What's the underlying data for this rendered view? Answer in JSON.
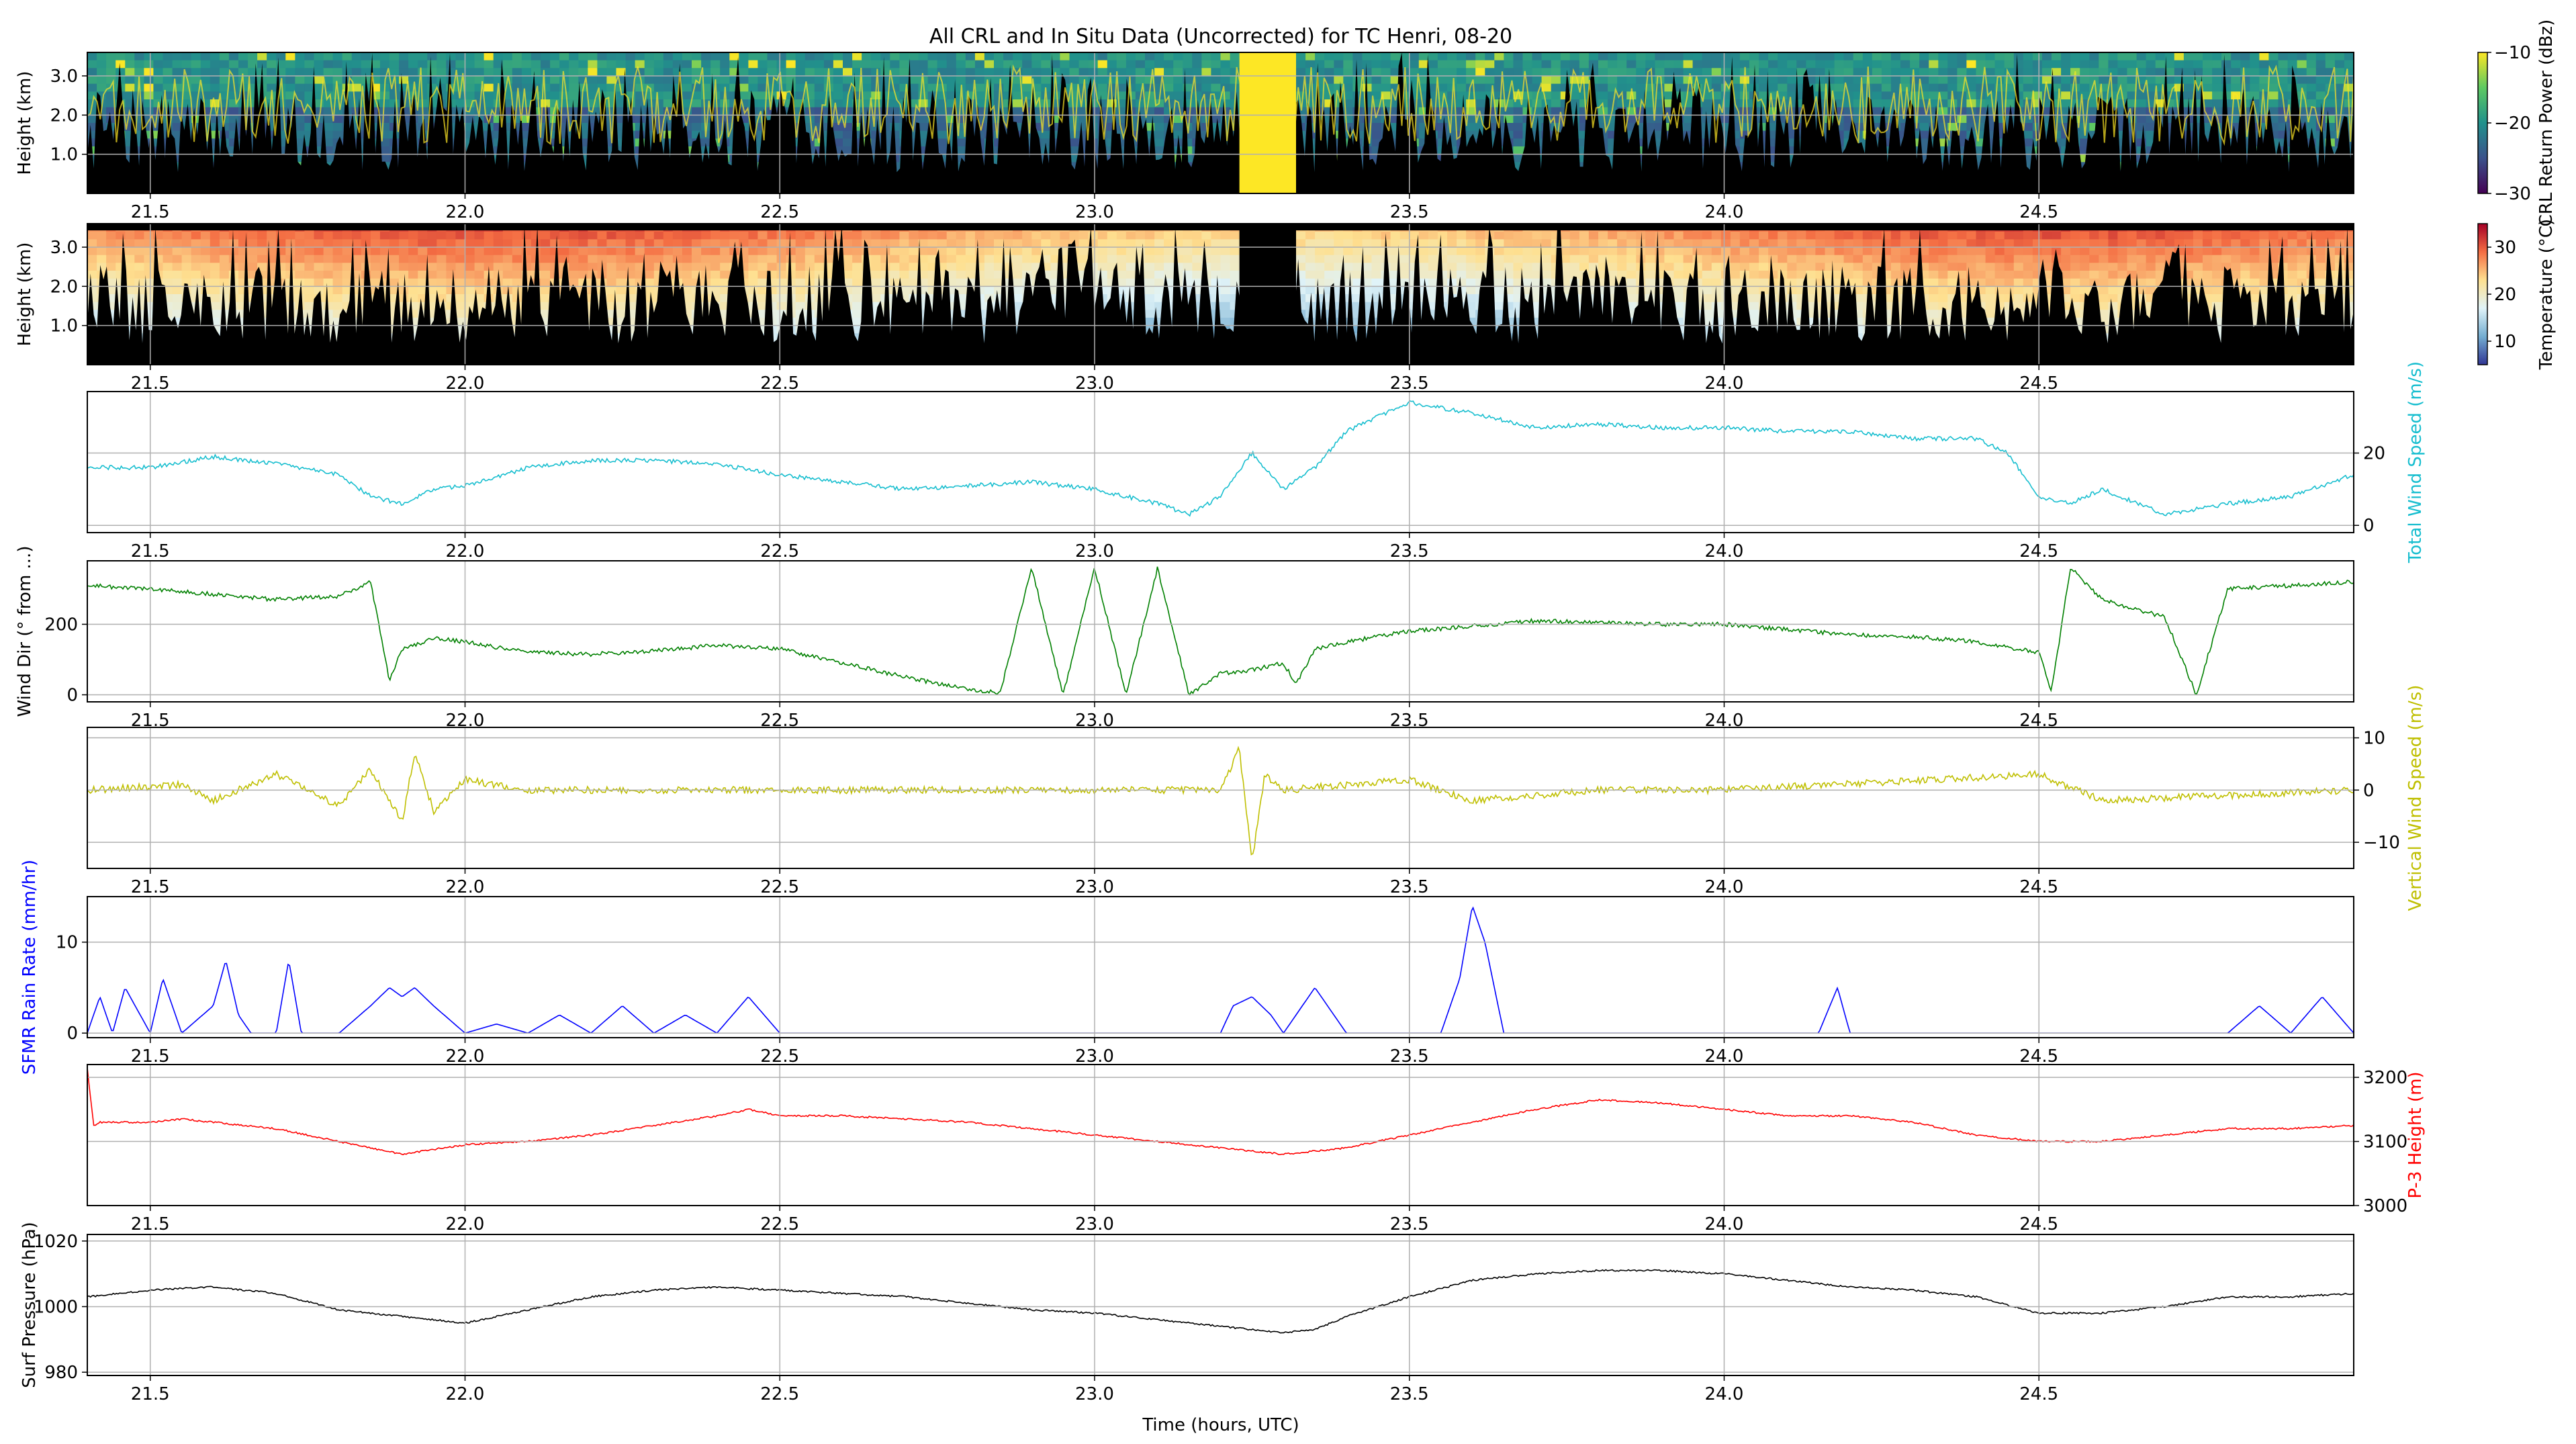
{
  "title": "All CRL and In Situ Data (Uncorrected) for TC Henri, 08-20",
  "xlabel": "Time (hours, UTC)",
  "x_ticks": [
    "21.5",
    "22.0",
    "22.5",
    "23.0",
    "23.5",
    "24.0",
    "24.5"
  ],
  "x_tick_values": [
    21.5,
    22.0,
    22.5,
    23.0,
    23.5,
    24.0,
    24.5
  ],
  "xlim": [
    21.4,
    25.0
  ],
  "colors": {
    "total_wind": "#17becf",
    "wind_dir": "#008000",
    "vertical_wind": "#bfbf00",
    "rain": "#0000ff",
    "p3_height": "#ff0000",
    "pressure": "#000000"
  },
  "chart_data": [
    {
      "type": "heatmap",
      "id": "crl_power",
      "ylabel": "Height (km)",
      "y_ticks": [
        "1.0",
        "2.0",
        "3.0"
      ],
      "y_tick_values": [
        1.0,
        2.0,
        3.0
      ],
      "ylim": [
        0.0,
        3.6
      ],
      "colorbar": {
        "label": "CRL Return Power (dBz)",
        "ticks": [
          "−10",
          "−20",
          "−30"
        ],
        "tick_values": [
          -10,
          -20,
          -30
        ],
        "range": [
          -30,
          -10
        ],
        "colormap": "viridis"
      },
      "gap_x": [
        23.23,
        23.32
      ],
      "gap_color": "#fde725"
    },
    {
      "type": "heatmap",
      "id": "temperature",
      "ylabel": "Height (km)",
      "y_ticks": [
        "1.0",
        "2.0",
        "3.0"
      ],
      "y_tick_values": [
        1.0,
        2.0,
        3.0
      ],
      "ylim": [
        0.0,
        3.6
      ],
      "colorbar": {
        "label": "Temperature (°C)",
        "ticks": [
          "30",
          "20",
          "10"
        ],
        "tick_values": [
          30,
          20,
          10
        ],
        "range": [
          5,
          35
        ],
        "colormap": "RdYlBu_r"
      },
      "gap_x": [
        23.23,
        23.32
      ],
      "gap_color": "#000000"
    },
    {
      "type": "line",
      "id": "total_wind",
      "ylabel": "Total Wind Speed (m/s)",
      "ylabel_side": "right",
      "y_ticks": [
        "0",
        "20"
      ],
      "y_tick_values": [
        0,
        20
      ],
      "ylim": [
        -2,
        37
      ],
      "x": [
        21.4,
        21.5,
        21.6,
        21.7,
        21.8,
        21.85,
        21.9,
        21.95,
        22.0,
        22.1,
        22.2,
        22.3,
        22.4,
        22.5,
        22.6,
        22.7,
        22.8,
        22.9,
        23.0,
        23.1,
        23.15,
        23.2,
        23.25,
        23.3,
        23.35,
        23.4,
        23.45,
        23.5,
        23.6,
        23.7,
        23.8,
        23.9,
        24.0,
        24.1,
        24.2,
        24.3,
        24.4,
        24.45,
        24.5,
        24.55,
        24.6,
        24.7,
        24.8,
        24.9,
        25.0
      ],
      "values": [
        16,
        16,
        19,
        17,
        14,
        8,
        6,
        10,
        11,
        16,
        18,
        18,
        17,
        14,
        12,
        10,
        11,
        12,
        10,
        6,
        3,
        8,
        20,
        10,
        16,
        26,
        30,
        34,
        31,
        27,
        28,
        27,
        27,
        26,
        26,
        24,
        24,
        20,
        8,
        6,
        10,
        3,
        6,
        8,
        14
      ]
    },
    {
      "type": "line",
      "id": "wind_dir",
      "ylabel": "Wind Dir (° from ...)",
      "y_ticks": [
        "0",
        "200"
      ],
      "y_tick_values": [
        0,
        200
      ],
      "ylim": [
        -20,
        380
      ],
      "x": [
        21.4,
        21.5,
        21.6,
        21.7,
        21.8,
        21.85,
        21.88,
        21.9,
        21.95,
        22.0,
        22.1,
        22.2,
        22.3,
        22.4,
        22.5,
        22.6,
        22.7,
        22.8,
        22.85,
        22.9,
        22.95,
        23.0,
        23.05,
        23.1,
        23.15,
        23.2,
        23.25,
        23.3,
        23.32,
        23.35,
        23.4,
        23.5,
        23.6,
        23.7,
        23.8,
        23.9,
        24.0,
        24.1,
        24.2,
        24.3,
        24.4,
        24.5,
        24.52,
        24.55,
        24.6,
        24.7,
        24.75,
        24.8,
        24.9,
        25.0
      ],
      "values": [
        310,
        300,
        285,
        270,
        280,
        320,
        40,
        130,
        160,
        150,
        120,
        115,
        125,
        140,
        130,
        90,
        50,
        15,
        5,
        360,
        0,
        360,
        0,
        360,
        0,
        60,
        70,
        90,
        30,
        130,
        150,
        180,
        195,
        210,
        205,
        200,
        200,
        185,
        170,
        165,
        150,
        120,
        10,
        360,
        270,
        220,
        0,
        300,
        310,
        320
      ]
    },
    {
      "type": "line",
      "id": "vertical_wind",
      "ylabel": "Vertical Wind Speed (m/s)",
      "ylabel_side": "right",
      "y_ticks": [
        "−10",
        "0",
        "10"
      ],
      "y_tick_values": [
        -10,
        0,
        10
      ],
      "ylim": [
        -15,
        12
      ],
      "x": [
        21.4,
        21.55,
        21.6,
        21.7,
        21.8,
        21.85,
        21.9,
        21.92,
        21.95,
        22.0,
        22.1,
        22.3,
        22.5,
        23.0,
        23.2,
        23.23,
        23.25,
        23.27,
        23.3,
        23.5,
        23.6,
        23.8,
        24.0,
        24.5,
        24.6,
        25.0
      ],
      "values": [
        0,
        1,
        -2,
        3,
        -3,
        4,
        -6,
        7,
        -4,
        2,
        0,
        0,
        0,
        0,
        0,
        8,
        -14,
        3,
        0,
        2,
        -2,
        0,
        0,
        3,
        -2,
        0
      ]
    },
    {
      "type": "line",
      "id": "rain",
      "ylabel": "SFMR Rain Rate (mm/hr)",
      "ylabel_side": "left",
      "y_ticks": [
        "0",
        "10"
      ],
      "y_tick_values": [
        0,
        10
      ],
      "ylim": [
        -0.5,
        15
      ],
      "x": [
        21.4,
        21.42,
        21.44,
        21.46,
        21.5,
        21.52,
        21.55,
        21.6,
        21.62,
        21.64,
        21.66,
        21.7,
        21.72,
        21.74,
        21.8,
        21.85,
        21.88,
        21.9,
        21.92,
        21.95,
        22.0,
        22.05,
        22.1,
        22.15,
        22.2,
        22.25,
        22.3,
        22.35,
        22.4,
        22.45,
        22.5,
        23.0,
        23.2,
        23.22,
        23.25,
        23.28,
        23.3,
        23.35,
        23.4,
        23.55,
        23.58,
        23.6,
        23.62,
        23.65,
        23.7,
        24.0,
        24.15,
        24.18,
        24.2,
        24.5,
        24.6,
        24.8,
        24.85,
        24.9,
        24.95,
        25.0
      ],
      "values": [
        0,
        4,
        0,
        5,
        0,
        6,
        0,
        3,
        8,
        2,
        0,
        0,
        8,
        0,
        0,
        3,
        5,
        4,
        5,
        3,
        0,
        1,
        0,
        2,
        0,
        3,
        0,
        2,
        0,
        4,
        0,
        0,
        0,
        3,
        4,
        2,
        0,
        5,
        0,
        0,
        6,
        14,
        10,
        0,
        0,
        0,
        0,
        5,
        0,
        0,
        0,
        0,
        3,
        0,
        4,
        0
      ]
    },
    {
      "type": "line",
      "id": "p3_height",
      "ylabel": "P-3 Height (m)",
      "ylabel_side": "right",
      "y_ticks": [
        "3000",
        "3100",
        "3200"
      ],
      "y_tick_values": [
        3000,
        3100,
        3200
      ],
      "ylim": [
        3000,
        3220
      ],
      "x": [
        21.4,
        21.41,
        21.42,
        21.5,
        21.55,
        21.6,
        21.7,
        21.8,
        21.9,
        22.0,
        22.1,
        22.2,
        22.3,
        22.4,
        22.45,
        22.5,
        22.6,
        22.7,
        22.8,
        22.9,
        23.0,
        23.1,
        23.2,
        23.3,
        23.4,
        23.5,
        23.6,
        23.7,
        23.8,
        23.9,
        24.0,
        24.1,
        24.2,
        24.3,
        24.4,
        24.5,
        24.6,
        24.7,
        24.8,
        24.9,
        25.0
      ],
      "values": [
        3215,
        3125,
        3130,
        3130,
        3135,
        3130,
        3120,
        3100,
        3080,
        3095,
        3100,
        3110,
        3125,
        3140,
        3150,
        3140,
        3140,
        3135,
        3130,
        3120,
        3110,
        3100,
        3090,
        3080,
        3090,
        3110,
        3130,
        3150,
        3165,
        3160,
        3150,
        3140,
        3140,
        3130,
        3110,
        3100,
        3100,
        3110,
        3120,
        3120,
        3125
      ]
    },
    {
      "type": "line",
      "id": "pressure",
      "ylabel": "Surf Pressure (hPa)",
      "ylabel_side": "left",
      "y_ticks": [
        "980",
        "1000",
        "1020"
      ],
      "y_tick_values": [
        980,
        1000,
        1020
      ],
      "ylim": [
        979,
        1022
      ],
      "x": [
        21.4,
        21.5,
        21.6,
        21.7,
        21.8,
        21.9,
        22.0,
        22.1,
        22.2,
        22.3,
        22.4,
        22.5,
        22.6,
        22.7,
        22.8,
        22.9,
        23.0,
        23.1,
        23.2,
        23.3,
        23.35,
        23.4,
        23.5,
        23.6,
        23.7,
        23.8,
        23.9,
        24.0,
        24.1,
        24.2,
        24.3,
        24.4,
        24.5,
        24.6,
        24.7,
        24.8,
        24.9,
        25.0
      ],
      "values": [
        1003,
        1005,
        1006,
        1004,
        999,
        997,
        995,
        999,
        1003,
        1005,
        1006,
        1005,
        1004,
        1003,
        1001,
        999,
        998,
        996,
        994,
        992,
        993,
        997,
        1003,
        1008,
        1010,
        1011,
        1011,
        1010,
        1008,
        1006,
        1005,
        1003,
        998,
        998,
        1000,
        1003,
        1003,
        1004
      ]
    }
  ]
}
